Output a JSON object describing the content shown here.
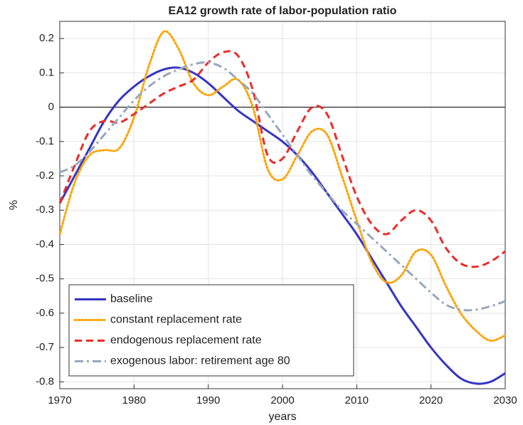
{
  "chart_data": {
    "type": "line",
    "title": "EA12 growth rate of labor-population ratio",
    "xlabel": "years",
    "ylabel": "%",
    "x": [
      1970,
      1972,
      1974,
      1976,
      1978,
      1980,
      1982,
      1984,
      1986,
      1988,
      1990,
      1992,
      1994,
      1996,
      1998,
      2000,
      2002,
      2004,
      2006,
      2008,
      2010,
      2012,
      2014,
      2016,
      2018,
      2020,
      2022,
      2024,
      2026,
      2028,
      2030
    ],
    "series": [
      {
        "name": "baseline",
        "color": "#3434c8",
        "style": "solid",
        "values": [
          -0.28,
          -0.2,
          -0.12,
          -0.04,
          0.02,
          0.06,
          0.09,
          0.11,
          0.115,
          0.1,
          0.07,
          0.03,
          -0.01,
          -0.04,
          -0.07,
          -0.1,
          -0.14,
          -0.19,
          -0.25,
          -0.31,
          -0.37,
          -0.44,
          -0.51,
          -0.58,
          -0.64,
          -0.7,
          -0.75,
          -0.79,
          -0.805,
          -0.8,
          -0.775
        ]
      },
      {
        "name": "constant replacement rate",
        "color": "#ffa200",
        "style": "dotted",
        "values": [
          -0.37,
          -0.22,
          -0.14,
          -0.125,
          -0.12,
          -0.03,
          0.12,
          0.22,
          0.17,
          0.07,
          0.035,
          0.06,
          0.08,
          0.0,
          -0.18,
          -0.21,
          -0.14,
          -0.07,
          -0.08,
          -0.2,
          -0.33,
          -0.45,
          -0.51,
          -0.49,
          -0.42,
          -0.43,
          -0.52,
          -0.6,
          -0.65,
          -0.68,
          -0.665
        ]
      },
      {
        "name": "endogenous replacement rate",
        "color": "#ee2a2a",
        "style": "dashed",
        "values": [
          -0.28,
          -0.17,
          -0.07,
          -0.04,
          -0.045,
          -0.02,
          0.01,
          0.04,
          0.06,
          0.08,
          0.13,
          0.16,
          0.15,
          0.05,
          -0.14,
          -0.15,
          -0.07,
          0.0,
          -0.02,
          -0.14,
          -0.26,
          -0.34,
          -0.37,
          -0.33,
          -0.3,
          -0.33,
          -0.41,
          -0.455,
          -0.465,
          -0.45,
          -0.42
        ]
      },
      {
        "name": "exogenous labor: retirement age 80",
        "color": "#97a8bb",
        "style": "dashdot",
        "values": [
          -0.19,
          -0.17,
          -0.13,
          -0.08,
          -0.03,
          0.02,
          0.06,
          0.09,
          0.11,
          0.125,
          0.13,
          0.115,
          0.08,
          0.04,
          -0.02,
          -0.08,
          -0.14,
          -0.2,
          -0.25,
          -0.3,
          -0.34,
          -0.38,
          -0.42,
          -0.46,
          -0.5,
          -0.54,
          -0.575,
          -0.59,
          -0.59,
          -0.58,
          -0.565
        ]
      }
    ],
    "xlim": [
      1970,
      2030
    ],
    "xticks": [
      1970,
      1980,
      1990,
      2000,
      2010,
      2020,
      2030
    ],
    "ylim": [
      -0.82,
      0.25
    ],
    "yticks": [
      -0.8,
      -0.7,
      -0.6,
      -0.5,
      -0.4,
      -0.3,
      -0.2,
      -0.1,
      0,
      0.1,
      0.2
    ],
    "grid": true,
    "legend": "lower left"
  }
}
